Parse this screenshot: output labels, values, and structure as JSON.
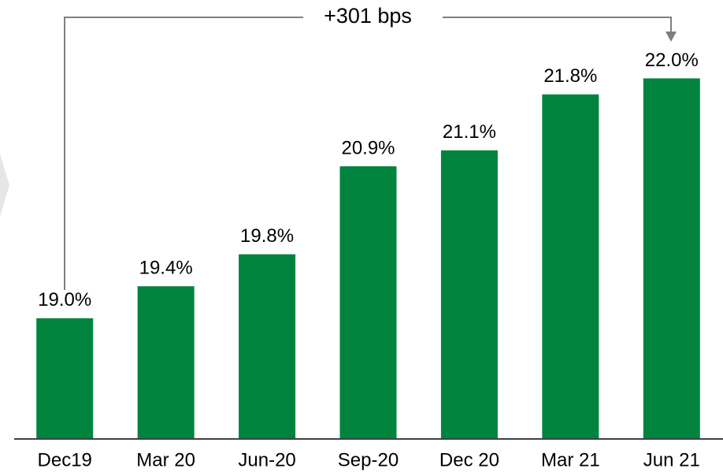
{
  "chart_data": {
    "type": "bar",
    "categories": [
      "Dec19",
      "Mar 20",
      "Jun-20",
      "Sep-20",
      "Dec 20",
      "Mar 21",
      "Jun 21"
    ],
    "values": [
      19.0,
      19.4,
      19.8,
      20.9,
      21.1,
      21.8,
      22.0
    ],
    "value_labels": [
      "19.0%",
      "19.4%",
      "19.8%",
      "20.9%",
      "21.1%",
      "21.8%",
      "22.0%"
    ],
    "color": "#00843d",
    "ylim": [
      17.5,
      22.3
    ],
    "annotation": "+301 bps"
  }
}
